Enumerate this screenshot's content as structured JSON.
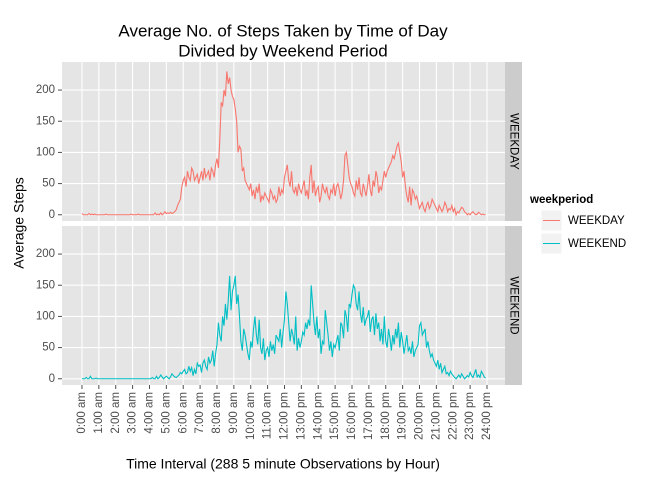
{
  "chart_data": {
    "type": "line",
    "title": [
      "Average No. of Steps Taken by Time of Day",
      "Divided by Weekend Period"
    ],
    "x_label": "Time Interval (288 5 minute Observations by Hour)",
    "y_label": "Average Steps",
    "legend_title": "weekperiod",
    "facet": true,
    "grid": true,
    "x": [
      0,
      5,
      10,
      15,
      20,
      25,
      30,
      35,
      40,
      45,
      50,
      55,
      60,
      65,
      70,
      75,
      80,
      85,
      90,
      95,
      100,
      105,
      110,
      115,
      120,
      125,
      130,
      135,
      140,
      145,
      150,
      155,
      160,
      165,
      170,
      175,
      180,
      185,
      190,
      195,
      200,
      205,
      210,
      215,
      220,
      225,
      230,
      235,
      240,
      245,
      250,
      255,
      260,
      265,
      270,
      275,
      280,
      285,
      290,
      295,
      300,
      305,
      310,
      315,
      320,
      325,
      330,
      335,
      340,
      345,
      350,
      355,
      360,
      365,
      370,
      375,
      380,
      385,
      390,
      395,
      400,
      405,
      410,
      415,
      420,
      425,
      430,
      435,
      440,
      445,
      450,
      455,
      460,
      465,
      470,
      475,
      480,
      485,
      490,
      495,
      500,
      505,
      510,
      515,
      520,
      525,
      530,
      535,
      540,
      545,
      550,
      555,
      560,
      565,
      570,
      575,
      580,
      585,
      590,
      595,
      600,
      605,
      610,
      615,
      620,
      625,
      630,
      635,
      640,
      645,
      650,
      655,
      660,
      665,
      670,
      675,
      680,
      685,
      690,
      695,
      700,
      705,
      710,
      715,
      720,
      725,
      730,
      735,
      740,
      745,
      750,
      755,
      760,
      765,
      770,
      775,
      780,
      785,
      790,
      795,
      800,
      805,
      810,
      815,
      820,
      825,
      830,
      835,
      840,
      845,
      850,
      855,
      860,
      865,
      870,
      875,
      880,
      885,
      890,
      895,
      900,
      905,
      910,
      915,
      920,
      925,
      930,
      935,
      940,
      945,
      950,
      955,
      960,
      965,
      970,
      975,
      980,
      985,
      990,
      995,
      1000,
      1005,
      1010,
      1015,
      1020,
      1025,
      1030,
      1035,
      1040,
      1045,
      1050,
      1055,
      1060,
      1065,
      1070,
      1075,
      1080,
      1085,
      1090,
      1095,
      1100,
      1105,
      1110,
      1115,
      1120,
      1125,
      1130,
      1135,
      1140,
      1145,
      1150,
      1155,
      1160,
      1165,
      1170,
      1175,
      1180,
      1185,
      1190,
      1195,
      1200,
      1205,
      1210,
      1215,
      1220,
      1225,
      1230,
      1235,
      1240,
      1245,
      1250,
      1255,
      1260,
      1265,
      1270,
      1275,
      1280,
      1285,
      1290,
      1295,
      1300,
      1305,
      1310,
      1315,
      1320,
      1325,
      1330,
      1335,
      1340,
      1345,
      1350,
      1355,
      1360,
      1365,
      1370,
      1375,
      1380,
      1385,
      1390,
      1395,
      1400,
      1405,
      1410,
      1415,
      1420,
      1425,
      1430,
      1435
    ],
    "series": [
      {
        "name": "WEEKDAY",
        "color": "#F8766D",
        "values": [
          2,
          0,
          0,
          0,
          0,
          2,
          0,
          1,
          0,
          1,
          0,
          0,
          0,
          0,
          0,
          0,
          0,
          1,
          0,
          0,
          0,
          0,
          0,
          0,
          0,
          0,
          0,
          0,
          0,
          0,
          0,
          0,
          0,
          0,
          0,
          1,
          0,
          0,
          0,
          0,
          1,
          0,
          0,
          0,
          0,
          0,
          0,
          0,
          0,
          0,
          0,
          0,
          3,
          0,
          1,
          0,
          3,
          0,
          2,
          5,
          2,
          3,
          2,
          4,
          2,
          3,
          5,
          8,
          15,
          20,
          25,
          45,
          55,
          60,
          45,
          70,
          60,
          55,
          75,
          70,
          55,
          60,
          65,
          50,
          60,
          70,
          55,
          75,
          60,
          65,
          70,
          55,
          75,
          70,
          60,
          80,
          90,
          75,
          120,
          180,
          175,
          200,
          190,
          230,
          210,
          220,
          200,
          190,
          185,
          170,
          150,
          100,
          110,
          105,
          70,
          75,
          55,
          50,
          45,
          40,
          50,
          30,
          40,
          25,
          45,
          35,
          50,
          20,
          30,
          25,
          35,
          30,
          25,
          20,
          40,
          35,
          25,
          30,
          20,
          25,
          45,
          30,
          40,
          35,
          60,
          70,
          80,
          55,
          45,
          70,
          40,
          35,
          45,
          30,
          50,
          40,
          35,
          45,
          55,
          30,
          40,
          25,
          60,
          80,
          35,
          55,
          30,
          40,
          45,
          20,
          30,
          50,
          40,
          35,
          45,
          30,
          25,
          40,
          35,
          50,
          30,
          45,
          50,
          40,
          25,
          35,
          55,
          95,
          100,
          80,
          60,
          50,
          45,
          35,
          30,
          55,
          40,
          60,
          35,
          30,
          50,
          40,
          30,
          45,
          65,
          40,
          30,
          55,
          45,
          70,
          60,
          35,
          45,
          40,
          55,
          70,
          60,
          70,
          75,
          80,
          85,
          95,
          90,
          100,
          110,
          115,
          100,
          85,
          60,
          70,
          45,
          30,
          20,
          45,
          15,
          40,
          35,
          25,
          30,
          20,
          10,
          15,
          20,
          10,
          5,
          15,
          20,
          10,
          15,
          25,
          20,
          15,
          10,
          5,
          15,
          10,
          5,
          10,
          20,
          15,
          5,
          10,
          8,
          15,
          5,
          10,
          0,
          5,
          3,
          8,
          12,
          10,
          5,
          3,
          0,
          2,
          0,
          3,
          5,
          2,
          0,
          1,
          4,
          2,
          0,
          1,
          0,
          0
        ]
      },
      {
        "name": "WEEKEND",
        "color": "#00BFC4",
        "values": [
          0,
          0,
          0,
          2,
          0,
          0,
          4,
          0,
          0,
          0,
          1,
          0,
          0,
          0,
          0,
          0,
          0,
          0,
          0,
          0,
          0,
          0,
          0,
          0,
          0,
          0,
          0,
          0,
          0,
          0,
          0,
          0,
          0,
          0,
          0,
          0,
          0,
          0,
          0,
          0,
          0,
          0,
          0,
          0,
          0,
          0,
          0,
          0,
          0,
          0,
          2,
          0,
          0,
          4,
          0,
          2,
          6,
          3,
          0,
          2,
          4,
          2,
          0,
          3,
          8,
          5,
          3,
          2,
          4,
          6,
          10,
          8,
          12,
          15,
          8,
          10,
          20,
          12,
          18,
          5,
          15,
          8,
          25,
          20,
          22,
          10,
          25,
          30,
          20,
          15,
          35,
          25,
          30,
          45,
          20,
          40,
          55,
          90,
          70,
          60,
          100,
          85,
          120,
          95,
          125,
          165,
          110,
          140,
          150,
          165,
          120,
          135,
          100,
          60,
          45,
          80,
          70,
          55,
          40,
          30,
          60,
          50,
          80,
          100,
          70,
          55,
          95,
          50,
          40,
          65,
          30,
          45,
          50,
          35,
          60,
          45,
          55,
          40,
          70,
          65,
          60,
          80,
          50,
          75,
          95,
          140,
          120,
          90,
          60,
          80,
          70,
          55,
          100,
          45,
          65,
          50,
          60,
          75,
          70,
          90,
          80,
          95,
          85,
          150,
          120,
          90,
          70,
          100,
          65,
          80,
          40,
          60,
          55,
          110,
          90,
          70,
          45,
          60,
          35,
          55,
          50,
          60,
          70,
          45,
          90,
          85,
          65,
          110,
          100,
          75,
          120,
          115,
          135,
          150,
          145,
          120,
          110,
          140,
          105,
          90,
          115,
          85,
          95,
          100,
          110,
          75,
          95,
          100,
          70,
          105,
          80,
          90,
          60,
          80,
          55,
          100,
          60,
          50,
          80,
          65,
          45,
          70,
          55,
          80,
          65,
          90,
          50,
          75,
          60,
          40,
          55,
          70,
          45,
          50,
          40,
          60,
          35,
          45,
          50,
          55,
          85,
          90,
          70,
          75,
          80,
          50,
          60,
          45,
          35,
          40,
          30,
          25,
          20,
          30,
          15,
          25,
          10,
          15,
          20,
          8,
          10,
          5,
          12,
          8,
          5,
          2,
          0,
          3,
          6,
          2,
          8,
          4,
          0,
          2,
          5,
          3,
          10,
          5,
          2,
          8,
          15,
          3,
          6,
          2,
          12,
          8,
          3,
          1
        ]
      }
    ],
    "xlim": [
      -71,
      1504
    ],
    "xticks": [
      {
        "value": 0,
        "label": "0:00 am"
      },
      {
        "value": 60,
        "label": "1:00 am"
      },
      {
        "value": 120,
        "label": "2:00 am"
      },
      {
        "value": 180,
        "label": "3:00 am"
      },
      {
        "value": 240,
        "label": "4:00 am"
      },
      {
        "value": 300,
        "label": "5:00 am"
      },
      {
        "value": 360,
        "label": "6:00 am"
      },
      {
        "value": 420,
        "label": "7:00 am"
      },
      {
        "value": 480,
        "label": "8:00 am"
      },
      {
        "value": 540,
        "label": "9:00 am"
      },
      {
        "value": 600,
        "label": "10:00 am"
      },
      {
        "value": 660,
        "label": "11:00 am"
      },
      {
        "value": 720,
        "label": "12:00 pm"
      },
      {
        "value": 780,
        "label": "13:00 pm"
      },
      {
        "value": 840,
        "label": "14:00 pm"
      },
      {
        "value": 900,
        "label": "15:00 pm"
      },
      {
        "value": 960,
        "label": "16:00 pm"
      },
      {
        "value": 1020,
        "label": "17:00 pm"
      },
      {
        "value": 1080,
        "label": "18:00 pm"
      },
      {
        "value": 1140,
        "label": "19:00 pm"
      },
      {
        "value": 1200,
        "label": "20:00 pm"
      },
      {
        "value": 1260,
        "label": "21:00 pm"
      },
      {
        "value": 1320,
        "label": "22:00 pm"
      },
      {
        "value": 1380,
        "label": "23:00 pm"
      },
      {
        "value": 1440,
        "label": "24:00 pm"
      }
    ],
    "ylim": [
      -10,
      245
    ],
    "yticks": [
      0,
      50,
      100,
      150,
      200
    ]
  }
}
